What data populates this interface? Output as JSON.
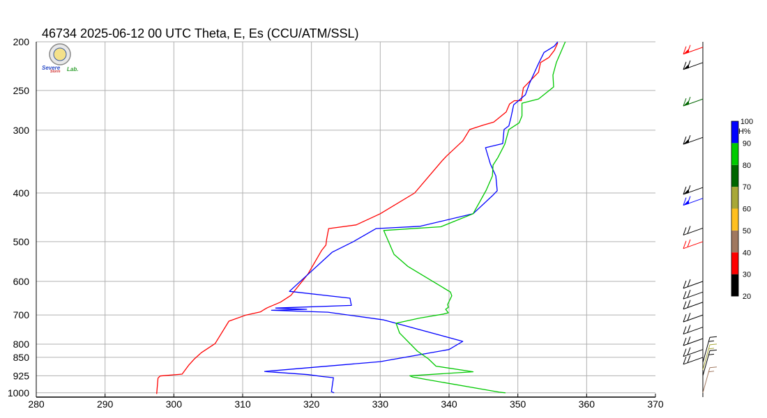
{
  "chart_data": {
    "type": "line",
    "title": "46734  2025-06-12 00 UTC  Theta, E, Es (CCU/ATM/SSL)",
    "xlabel": "",
    "ylabel": "",
    "xlim": [
      280,
      370
    ],
    "x_ticks": [
      280,
      290,
      300,
      310,
      320,
      330,
      340,
      350,
      360,
      370
    ],
    "ylim": [
      200,
      1020
    ],
    "y_ticks": [
      200,
      250,
      300,
      400,
      500,
      600,
      700,
      800,
      850,
      925,
      1000
    ],
    "grid": true,
    "series": [
      {
        "color": "#ff0000",
        "points": [
          [
            297.5,
            1005
          ],
          [
            297.7,
            935
          ],
          [
            298.0,
            926
          ],
          [
            301.2,
            918
          ],
          [
            302.2,
            880
          ],
          [
            303.0,
            856
          ],
          [
            304.0,
            832
          ],
          [
            306.0,
            798
          ],
          [
            308.0,
            720
          ],
          [
            310.5,
            700
          ],
          [
            312.6,
            690
          ],
          [
            313.1,
            683
          ],
          [
            313.6,
            677
          ],
          [
            315.5,
            660
          ],
          [
            317.0,
            640
          ],
          [
            319.5,
            580
          ],
          [
            321.5,
            520
          ],
          [
            322.1,
            508
          ],
          [
            322.2,
            495
          ],
          [
            322.5,
            471
          ],
          [
            326.5,
            463
          ],
          [
            330.0,
            440
          ],
          [
            335.0,
            400
          ],
          [
            339.0,
            345
          ],
          [
            339.6,
            338
          ],
          [
            342.0,
            315
          ],
          [
            343.0,
            299
          ],
          [
            345.0,
            293
          ],
          [
            346.5,
            289
          ],
          [
            348.3,
            276
          ],
          [
            348.8,
            266
          ],
          [
            349.5,
            262
          ],
          [
            350.5,
            262
          ],
          [
            350.8,
            247
          ],
          [
            353.0,
            230
          ],
          [
            353.3,
            220
          ],
          [
            354.5,
            215
          ],
          [
            355.3,
            208
          ],
          [
            355.8,
            201
          ]
        ]
      },
      {
        "color": "#0000ff",
        "points": [
          [
            323.3,
            1000
          ],
          [
            322.9,
            995
          ],
          [
            323.2,
            933
          ],
          [
            321.5,
            928
          ],
          [
            319.5,
            920
          ],
          [
            313.2,
            907
          ],
          [
            330.0,
            867
          ],
          [
            340.0,
            820
          ],
          [
            342.0,
            790
          ],
          [
            330.5,
            716
          ],
          [
            322.4,
            691
          ],
          [
            314.2,
            685
          ],
          [
            319.3,
            682
          ],
          [
            314.8,
            678
          ],
          [
            325.8,
            670
          ],
          [
            325.6,
            648
          ],
          [
            316.8,
            628
          ],
          [
            323.0,
            525
          ],
          [
            326.1,
            500
          ],
          [
            329.4,
            471
          ],
          [
            335.8,
            466
          ],
          [
            343.5,
            440
          ],
          [
            346.3,
            405
          ],
          [
            347.0,
            396
          ],
          [
            346.8,
            370
          ],
          [
            346.0,
            350
          ],
          [
            345.3,
            325
          ],
          [
            347.8,
            319
          ],
          [
            348.0,
            299
          ],
          [
            348.7,
            294
          ],
          [
            349.0,
            283
          ],
          [
            349.4,
            267
          ],
          [
            350.1,
            262
          ],
          [
            351.1,
            255
          ],
          [
            351.7,
            242
          ],
          [
            353.0,
            221
          ],
          [
            353.8,
            210
          ],
          [
            355.3,
            204
          ],
          [
            355.8,
            200
          ]
        ]
      },
      {
        "color": "#00c800",
        "points": [
          [
            348.2,
            1000
          ],
          [
            347.3,
            997
          ],
          [
            336.5,
            940
          ],
          [
            334.7,
            930
          ],
          [
            334.3,
            925
          ],
          [
            343.5,
            908
          ],
          [
            338.1,
            885
          ],
          [
            337.0,
            856
          ],
          [
            335.4,
            826
          ],
          [
            332.8,
            760
          ],
          [
            332.3,
            727
          ],
          [
            335.7,
            710
          ],
          [
            339.2,
            697
          ],
          [
            339.9,
            693
          ],
          [
            339.5,
            682
          ],
          [
            339.9,
            676
          ],
          [
            339.8,
            667
          ],
          [
            340.4,
            641
          ],
          [
            340.2,
            630
          ],
          [
            334.0,
            560
          ],
          [
            332.0,
            530
          ],
          [
            330.5,
            475
          ],
          [
            338.8,
            467
          ],
          [
            343.5,
            440
          ],
          [
            345.4,
            395
          ],
          [
            346.3,
            370
          ],
          [
            346.4,
            352
          ],
          [
            347.1,
            340
          ],
          [
            348.1,
            320
          ],
          [
            348.7,
            299
          ],
          [
            350.2,
            290
          ],
          [
            350.6,
            281
          ],
          [
            350.6,
            265
          ],
          [
            353.0,
            260
          ],
          [
            355.2,
            246
          ],
          [
            355.1,
            233
          ],
          [
            355.6,
            220
          ],
          [
            356.3,
            209
          ],
          [
            356.9,
            200
          ]
        ]
      }
    ],
    "colorbar": {
      "label": "RH%",
      "ticks": [
        20,
        30,
        40,
        50,
        60,
        70,
        80,
        90,
        100
      ],
      "bands": [
        {
          "from": 20,
          "to": 30,
          "color": "#000000"
        },
        {
          "from": 30,
          "to": 40,
          "color": "#ff0000"
        },
        {
          "from": 40,
          "to": 50,
          "color": "#a07860"
        },
        {
          "from": 50,
          "to": 60,
          "color": "#ffc020"
        },
        {
          "from": 60,
          "to": 70,
          "color": "#a8a838"
        },
        {
          "from": 70,
          "to": 80,
          "color": "#006600"
        },
        {
          "from": 80,
          "to": 90,
          "color": "#00cc00"
        },
        {
          "from": 90,
          "to": 100,
          "color": "#0000ff"
        }
      ]
    },
    "wind_barbs": [
      {
        "p": 1000,
        "color": "#a07860"
      },
      {
        "p": 925,
        "color": "#000000"
      },
      {
        "p": 900,
        "color": "#a8a838"
      },
      {
        "p": 870,
        "color": "#000000"
      },
      {
        "p": 850,
        "color": "#000000"
      },
      {
        "p": 820,
        "color": "#000000"
      },
      {
        "p": 780,
        "color": "#000000"
      },
      {
        "p": 740,
        "color": "#000000"
      },
      {
        "p": 700,
        "color": "#000000"
      },
      {
        "p": 660,
        "color": "#000000"
      },
      {
        "p": 630,
        "color": "#000000"
      },
      {
        "p": 600,
        "color": "#000000"
      },
      {
        "p": 500,
        "color": "#ff0000"
      },
      {
        "p": 470,
        "color": "#000000"
      },
      {
        "p": 410,
        "color": "#0000ff"
      },
      {
        "p": 390,
        "color": "#000000"
      },
      {
        "p": 310,
        "color": "#000000"
      },
      {
        "p": 260,
        "color": "#006600"
      },
      {
        "p": 220,
        "color": "#000000"
      },
      {
        "p": 205,
        "color": "#ff0000"
      }
    ],
    "logo": {
      "text_line1": "Severe",
      "text_line2": "Storm",
      "text_line3": "Lab."
    }
  }
}
